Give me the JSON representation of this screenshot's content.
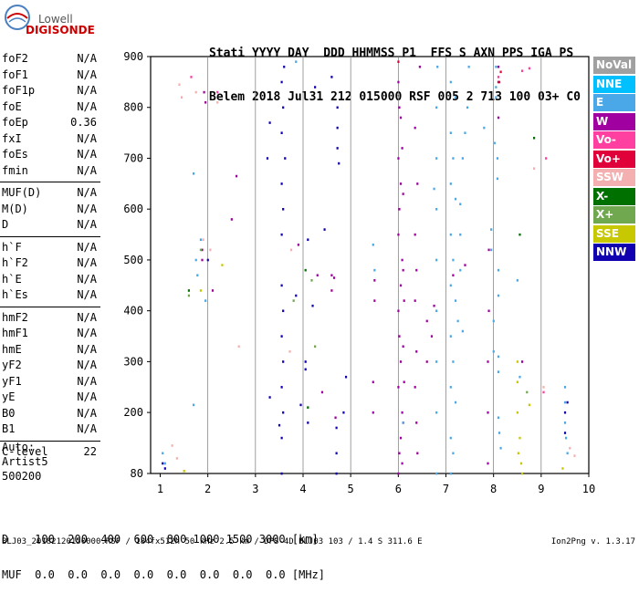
{
  "logo": {
    "top": "Lowell",
    "bottom": "DIGISONDE"
  },
  "header": {
    "line1": "Stati YYYY DAY  DDD HHMMSS P1  FFS S AXN PPS IGA PS",
    "line2": "Belem 2018 Jul31 212 015000 RSF 005 2 713 100 03+ C0"
  },
  "params": [
    {
      "label": "foF2",
      "value": "N/A"
    },
    {
      "label": "foF1",
      "value": "N/A"
    },
    {
      "label": "foF1p",
      "value": "N/A"
    },
    {
      "label": "foE",
      "value": "N/A"
    },
    {
      "label": "foEp",
      "value": "0.36"
    },
    {
      "label": "fxI",
      "value": "N/A"
    },
    {
      "label": "foEs",
      "value": "N/A"
    },
    {
      "label": "fmin",
      "value": "N/A"
    },
    {
      "sep": true
    },
    {
      "label": "MUF(D)",
      "value": "N/A"
    },
    {
      "label": "M(D)",
      "value": "N/A"
    },
    {
      "label": "D",
      "value": "N/A"
    },
    {
      "sep": true
    },
    {
      "label": "h`F",
      "value": "N/A"
    },
    {
      "label": "h`F2",
      "value": "N/A"
    },
    {
      "label": "h`E",
      "value": "N/A"
    },
    {
      "label": "h`Es",
      "value": "N/A"
    },
    {
      "sep": true
    },
    {
      "label": "hmF2",
      "value": "N/A"
    },
    {
      "label": "hmF1",
      "value": "N/A"
    },
    {
      "label": "hmE",
      "value": "N/A"
    },
    {
      "label": "yF2",
      "value": "N/A"
    },
    {
      "label": "yF1",
      "value": "N/A"
    },
    {
      "label": "yE",
      "value": "N/A"
    },
    {
      "label": "B0",
      "value": "N/A"
    },
    {
      "label": "B1",
      "value": "N/A"
    },
    {
      "sep": true
    },
    {
      "label": "C-level",
      "value": "22"
    }
  ],
  "extra": {
    "auto": "Auto:",
    "artist": "Artist5",
    "code": "500200"
  },
  "legend": [
    {
      "label": "NoVal",
      "color": "#a0a0a0"
    },
    {
      "label": "NNE",
      "color": "#00c0ff"
    },
    {
      "label": "E",
      "color": "#4aa8e8"
    },
    {
      "label": "W",
      "color": "#a000a0"
    },
    {
      "label": "Vo-",
      "color": "#ff40a0"
    },
    {
      "label": "Vo+",
      "color": "#e0003a"
    },
    {
      "label": "SSW",
      "color": "#f4b0b0"
    },
    {
      "label": "X-",
      "color": "#007000"
    },
    {
      "label": "X+",
      "color": "#70a850"
    },
    {
      "label": "SSE",
      "color": "#c8c800"
    },
    {
      "label": "NNW",
      "color": "#1000b0"
    }
  ],
  "bottom": {
    "line1": "D    100  200  400  600  800 1000 1500 3000 [km]",
    "line2": "MUF  0.0  0.0  0.0  0.0  0.0  0.0  0.0  0.0 [MHz]"
  },
  "footer": {
    "left": "BLJ03_20182120150000.RSF / 184fx512h 50 kHz 2.5 km / DPS-4D BLJ03 103 / 1.4 S 311.6 E",
    "right": "Ion2Png v. 1.3.17"
  },
  "chart_data": {
    "type": "scatter",
    "xlim": [
      1,
      10
    ],
    "ylim": [
      80,
      900
    ],
    "xticks": [
      "1",
      "2",
      "3",
      "4",
      "5",
      "6",
      "7",
      "8",
      "9",
      "10"
    ],
    "yticks": [
      "80",
      "200",
      "300",
      "400",
      "500",
      "600",
      "700",
      "800",
      "900"
    ],
    "grid": true,
    "series": [
      {
        "color": "#a000a0",
        "points": [
          [
            6.0,
            80
          ],
          [
            6.0,
            250
          ],
          [
            6.0,
            400
          ],
          [
            6.0,
            550
          ],
          [
            6.0,
            700
          ],
          [
            6.0,
            850
          ],
          [
            6.02,
            120
          ],
          [
            6.02,
            350
          ],
          [
            6.02,
            600
          ],
          [
            6.02,
            800
          ],
          [
            6.05,
            150
          ],
          [
            6.05,
            300
          ],
          [
            6.05,
            450
          ],
          [
            6.05,
            650
          ],
          [
            6.05,
            780
          ],
          [
            6.08,
            100
          ],
          [
            6.08,
            200
          ],
          [
            6.08,
            500
          ],
          [
            6.08,
            720
          ],
          [
            6.1,
            180
          ],
          [
            6.1,
            330
          ],
          [
            6.1,
            480
          ],
          [
            6.1,
            630
          ],
          [
            6.12,
            260
          ],
          [
            6.12,
            420
          ],
          [
            6.35,
            250
          ],
          [
            6.35,
            420
          ],
          [
            6.35,
            550
          ],
          [
            6.35,
            760
          ],
          [
            6.38,
            180
          ],
          [
            6.38,
            320
          ],
          [
            6.38,
            480
          ],
          [
            6.4,
            120
          ],
          [
            6.4,
            650
          ],
          [
            6.45,
            880
          ],
          [
            5.47,
            200
          ],
          [
            5.47,
            260
          ],
          [
            5.5,
            460
          ],
          [
            5.5,
            420
          ],
          [
            1.88,
            520
          ],
          [
            1.88,
            500
          ],
          [
            1.92,
            830
          ],
          [
            1.95,
            810
          ],
          [
            2.1,
            440
          ],
          [
            2.5,
            580
          ],
          [
            2.6,
            665
          ],
          [
            6.6,
            300
          ],
          [
            6.6,
            380
          ],
          [
            6.7,
            350
          ],
          [
            6.75,
            410
          ],
          [
            7.88,
            100
          ],
          [
            7.88,
            200
          ],
          [
            7.88,
            300
          ],
          [
            7.9,
            400
          ],
          [
            7.9,
            520
          ],
          [
            8.1,
            780
          ],
          [
            8.1,
            850
          ],
          [
            8.1,
            880
          ],
          [
            4.6,
            440
          ],
          [
            4.6,
            470
          ],
          [
            4.65,
            465
          ],
          [
            4.68,
            190
          ],
          [
            4.3,
            470
          ],
          [
            4.4,
            240
          ],
          [
            3.9,
            530
          ],
          [
            7.15,
            470
          ],
          [
            7.4,
            490
          ],
          [
            8.6,
            300
          ]
        ]
      },
      {
        "color": "#1000b0",
        "points": [
          [
            3.55,
            80
          ],
          [
            3.55,
            150
          ],
          [
            3.55,
            250
          ],
          [
            3.55,
            350
          ],
          [
            3.55,
            450
          ],
          [
            3.55,
            550
          ],
          [
            3.55,
            650
          ],
          [
            3.55,
            750
          ],
          [
            3.55,
            850
          ],
          [
            3.58,
            200
          ],
          [
            3.58,
            300
          ],
          [
            3.58,
            400
          ],
          [
            3.58,
            600
          ],
          [
            3.58,
            800
          ],
          [
            3.6,
            880
          ],
          [
            3.62,
            700
          ],
          [
            4.7,
            80
          ],
          [
            4.7,
            120
          ],
          [
            4.7,
            170
          ],
          [
            4.72,
            720
          ],
          [
            4.72,
            760
          ],
          [
            4.72,
            800
          ],
          [
            4.75,
            690
          ],
          [
            3.3,
            770
          ],
          [
            3.25,
            700
          ],
          [
            3.3,
            230
          ],
          [
            3.5,
            175
          ],
          [
            4.05,
            300
          ],
          [
            4.05,
            285
          ],
          [
            4.1,
            180
          ],
          [
            4.1,
            540
          ],
          [
            4.25,
            840
          ],
          [
            4.6,
            860
          ],
          [
            3.95,
            215
          ],
          [
            3.85,
            430
          ],
          [
            4.2,
            410
          ],
          [
            4.45,
            560
          ],
          [
            4.9,
            270
          ],
          [
            9.5,
            200
          ],
          [
            9.5,
            160
          ],
          [
            9.55,
            220
          ],
          [
            1.1,
            90
          ],
          [
            1.05,
            100
          ],
          [
            2.0,
            500
          ],
          [
            4.85,
            200
          ]
        ]
      },
      {
        "color": "#4aa8e8",
        "points": [
          [
            6.8,
            80
          ],
          [
            6.8,
            200
          ],
          [
            6.8,
            300
          ],
          [
            6.8,
            400
          ],
          [
            6.8,
            500
          ],
          [
            6.8,
            600
          ],
          [
            6.8,
            700
          ],
          [
            6.8,
            800
          ],
          [
            6.82,
            880
          ],
          [
            7.1,
            80
          ],
          [
            7.1,
            150
          ],
          [
            7.1,
            250
          ],
          [
            7.1,
            350
          ],
          [
            7.1,
            450
          ],
          [
            7.1,
            550
          ],
          [
            7.1,
            650
          ],
          [
            7.1,
            750
          ],
          [
            7.1,
            850
          ],
          [
            7.15,
            120
          ],
          [
            7.15,
            300
          ],
          [
            7.15,
            500
          ],
          [
            7.15,
            700
          ],
          [
            7.2,
            220
          ],
          [
            7.2,
            420
          ],
          [
            7.2,
            620
          ],
          [
            7.2,
            820
          ],
          [
            7.25,
            380
          ],
          [
            7.3,
            480
          ],
          [
            7.3,
            550
          ],
          [
            7.3,
            610
          ],
          [
            7.35,
            360
          ],
          [
            7.35,
            700
          ],
          [
            7.4,
            750
          ],
          [
            7.45,
            800
          ],
          [
            7.48,
            880
          ],
          [
            8.05,
            840
          ],
          [
            8.05,
            880
          ],
          [
            8.08,
            700
          ],
          [
            8.08,
            660
          ],
          [
            8.1,
            480
          ],
          [
            8.1,
            430
          ],
          [
            8.1,
            310
          ],
          [
            8.1,
            280
          ],
          [
            8.1,
            190
          ],
          [
            8.12,
            160
          ],
          [
            8.15,
            130
          ],
          [
            8.05,
            820
          ],
          [
            8.02,
            730
          ],
          [
            7.95,
            560
          ],
          [
            7.95,
            520
          ],
          [
            8.0,
            380
          ],
          [
            8.0,
            320
          ],
          [
            9.5,
            250
          ],
          [
            9.5,
            220
          ],
          [
            9.5,
            180
          ],
          [
            9.52,
            150
          ],
          [
            9.55,
            120
          ],
          [
            1.05,
            120
          ],
          [
            1.1,
            100
          ],
          [
            1.7,
            670
          ],
          [
            1.75,
            500
          ],
          [
            1.85,
            540
          ],
          [
            1.78,
            470
          ],
          [
            1.95,
            420
          ],
          [
            1.7,
            215
          ],
          [
            5.47,
            530
          ],
          [
            5.5,
            480
          ],
          [
            6.1,
            180
          ],
          [
            6.75,
            640
          ],
          [
            7.8,
            760
          ],
          [
            3.85,
            890
          ],
          [
            8.5,
            460
          ],
          [
            8.55,
            270
          ]
        ]
      },
      {
        "color": "#ff40a0",
        "points": [
          [
            8.1,
            860
          ],
          [
            8.6,
            872
          ],
          [
            8.75,
            877
          ],
          [
            1.65,
            860
          ],
          [
            2.2,
            830
          ],
          [
            9.1,
            700
          ],
          [
            9.05,
            240
          ]
        ]
      },
      {
        "color": "#f4b0b0",
        "points": [
          [
            1.4,
            845
          ],
          [
            1.45,
            820
          ],
          [
            1.75,
            830
          ],
          [
            1.9,
            540
          ],
          [
            2.05,
            520
          ],
          [
            2.2,
            810
          ],
          [
            2.65,
            330
          ],
          [
            3.75,
            520
          ],
          [
            3.72,
            320
          ],
          [
            1.25,
            135
          ],
          [
            1.35,
            110
          ],
          [
            8.85,
            680
          ],
          [
            9.05,
            250
          ],
          [
            9.6,
            130
          ],
          [
            9.7,
            115
          ]
        ]
      },
      {
        "color": "#007000",
        "points": [
          [
            1.6,
            440
          ],
          [
            8.55,
            550
          ],
          [
            8.85,
            740
          ],
          [
            4.1,
            210
          ],
          [
            4.05,
            480
          ]
        ]
      },
      {
        "color": "#70a850",
        "points": [
          [
            1.6,
            430
          ],
          [
            1.85,
            520
          ],
          [
            3.8,
            420
          ],
          [
            4.18,
            460
          ],
          [
            4.25,
            330
          ],
          [
            8.7,
            240
          ]
        ]
      },
      {
        "color": "#c8c800",
        "points": [
          [
            8.5,
            300
          ],
          [
            8.5,
            260
          ],
          [
            8.5,
            200
          ],
          [
            8.55,
            150
          ],
          [
            8.52,
            120
          ],
          [
            8.58,
            100
          ],
          [
            8.6,
            80
          ],
          [
            8.75,
            215
          ],
          [
            1.5,
            85
          ],
          [
            1.85,
            440
          ],
          [
            2.3,
            490
          ],
          [
            9.45,
            90
          ]
        ]
      },
      {
        "color": "#e0003a",
        "points": [
          [
            8.12,
            850
          ],
          [
            8.15,
            870
          ],
          [
            6.0,
            890
          ]
        ]
      }
    ]
  }
}
